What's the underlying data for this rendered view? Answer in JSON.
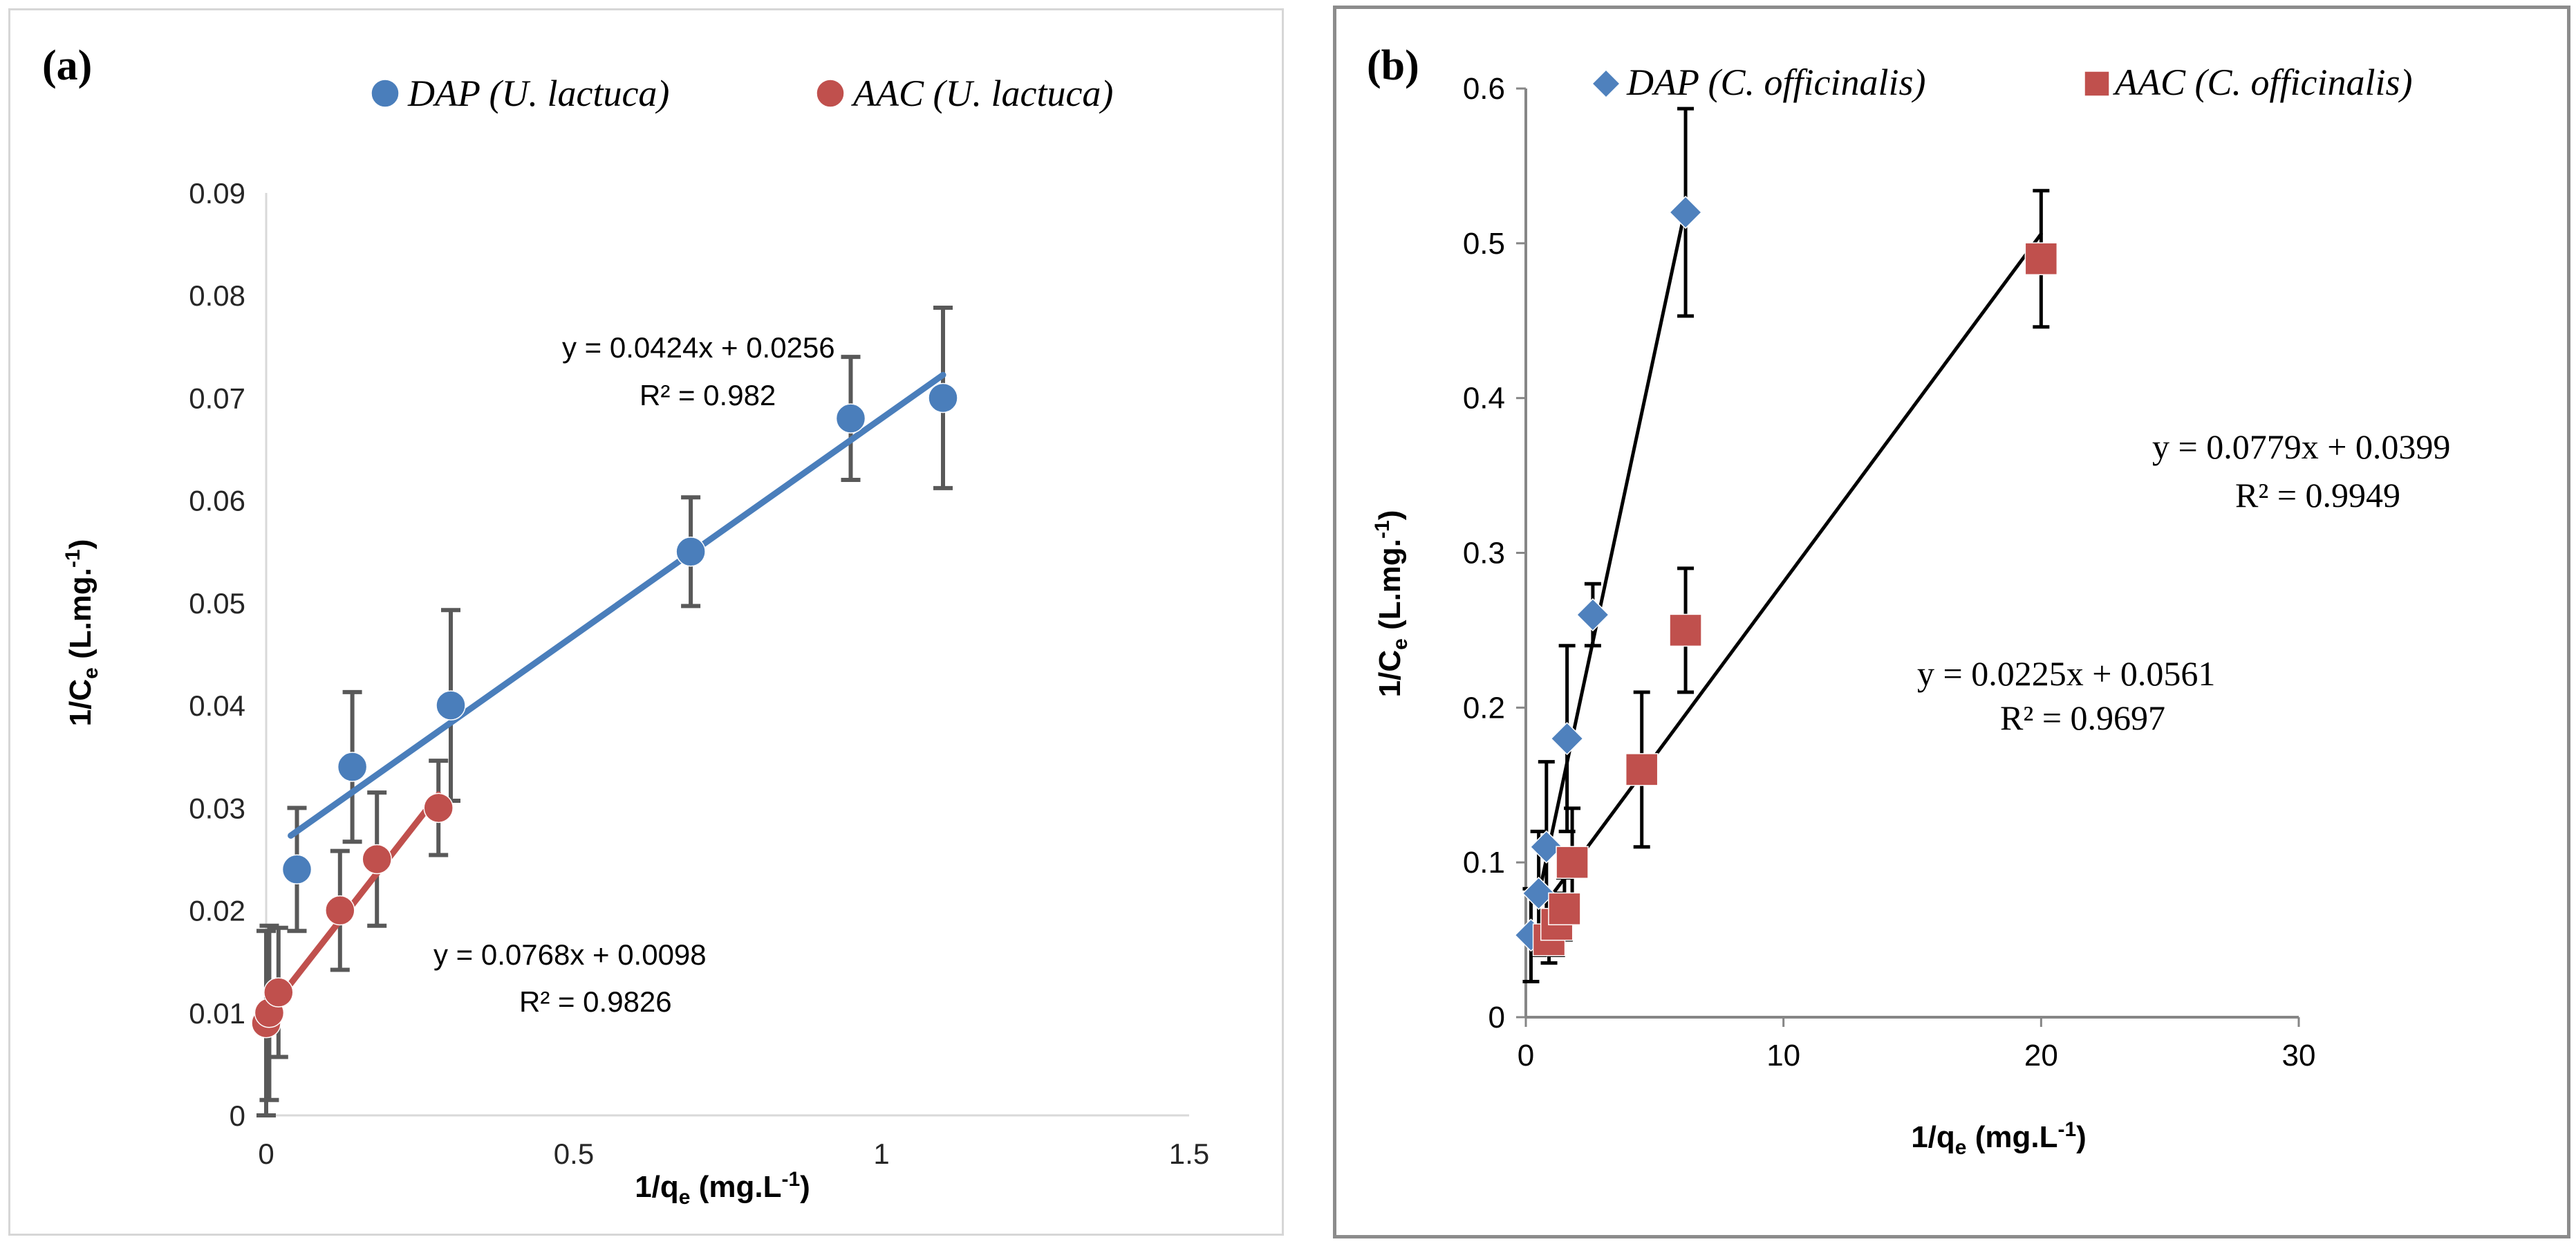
{
  "colors": {
    "dap_a": "#4a7ebb",
    "aac_a": "#c0504d",
    "dap_b": "#4f81bd",
    "aac_b": "#c0504d",
    "errorbar_a": "#595959",
    "errorbar_b": "#000000",
    "fit_b": "#000000",
    "axis_a": "#d9d9d9",
    "axis_b": "#868686"
  },
  "chart_data": [
    {
      "type": "scatter",
      "panel_label": "(a)",
      "xlabel": "1/q",
      "xlabel_sub": "e",
      "xlabel_unit": " (mg.L",
      "xlabel_sup": "-1",
      "xlabel_close": ")",
      "ylabel": "1/C",
      "ylabel_sub": "e",
      "ylabel_unit": " (L.mg.",
      "ylabel_sup": "-1",
      "ylabel_close": ")",
      "xlim": [
        0,
        1.5
      ],
      "ylim": [
        0,
        0.09
      ],
      "xticks": [
        0,
        0.5,
        1,
        1.5
      ],
      "xtick_labels": [
        "0",
        "0.5",
        "1",
        "1.5"
      ],
      "yticks": [
        0,
        0.01,
        0.02,
        0.03,
        0.04,
        0.05,
        0.06,
        0.07,
        0.08,
        0.09
      ],
      "ytick_labels": [
        "0",
        "0.01",
        "0.02",
        "0.03",
        "0.04",
        "0.05",
        "0.06",
        "0.07",
        "0.08",
        "0.09"
      ],
      "grid": false,
      "legend_position": "top",
      "series": [
        {
          "name": "DAP (U. lactuca)",
          "marker": "circle",
          "color_key": "dap_a",
          "x": [
            0.05,
            0.14,
            0.3,
            0.69,
            0.95,
            1.1
          ],
          "y": [
            0.024,
            0.034,
            0.04,
            0.055,
            0.068,
            0.07
          ],
          "error": [
            0.006,
            0.0073,
            0.0093,
            0.0053,
            0.006,
            0.0088
          ],
          "fit": {
            "slope": 0.0424,
            "intercept": 0.0256,
            "x_range": [
              0.04,
              1.1
            ]
          },
          "equation": "y = 0.0424x + 0.0256",
          "r2": "R² = 0.982"
        },
        {
          "name": "AAC (U. lactuca)",
          "marker": "circle",
          "color_key": "aac_a",
          "x": [
            0.0,
            0.005,
            0.02,
            0.12,
            0.18,
            0.28
          ],
          "y": [
            0.009,
            0.01,
            0.012,
            0.02,
            0.025,
            0.03
          ],
          "error": [
            0.009,
            0.0085,
            0.0063,
            0.0058,
            0.0065,
            0.0046
          ],
          "fit": {
            "slope": 0.0768,
            "intercept": 0.0098,
            "x_range": [
              0.0,
              0.28
            ]
          },
          "equation": "y = 0.0768x + 0.0098",
          "r2": "R² = 0.9826"
        }
      ]
    },
    {
      "type": "scatter",
      "panel_label": "(b)",
      "xlabel": "1/q",
      "xlabel_sub": "e",
      "xlabel_unit": " (mg.L",
      "xlabel_sup": "-1",
      "xlabel_close": ")",
      "ylabel": "1/C",
      "ylabel_sub": "e",
      "ylabel_unit": " (L.mg.",
      "ylabel_sup": "-1",
      "ylabel_close": ")",
      "xlim": [
        0,
        30
      ],
      "ylim": [
        0,
        0.6
      ],
      "xticks": [
        0,
        10,
        20,
        30
      ],
      "xtick_labels": [
        "0",
        "10",
        "20",
        "30"
      ],
      "yticks": [
        0,
        0.1,
        0.2,
        0.3,
        0.4,
        0.5,
        0.6
      ],
      "ytick_labels": [
        "0",
        "0.1",
        "0.2",
        "0.3",
        "0.4",
        "0.5",
        "0.6"
      ],
      "grid": false,
      "legend_position": "top",
      "series": [
        {
          "name": "DAP (C. officinalis)",
          "marker": "diamond",
          "color_key": "dap_b",
          "x": [
            0.2,
            0.5,
            0.8,
            1.6,
            2.6,
            6.2
          ],
          "y": [
            0.053,
            0.08,
            0.11,
            0.18,
            0.26,
            0.52
          ],
          "error": [
            0.03,
            0.04,
            0.055,
            0.06,
            0.02,
            0.067
          ],
          "fit": {
            "slope": 0.0779,
            "intercept": 0.0399,
            "x_range": [
              0.45,
              6.2
            ]
          },
          "equation": "y = 0.0779x + 0.0399",
          "r2": "R² = 0.9949"
        },
        {
          "name": "AAC (C. officinalis)",
          "marker": "square",
          "color_key": "aac_b",
          "x": [
            0.9,
            1.2,
            1.5,
            1.8,
            4.5,
            6.2,
            20.0
          ],
          "y": [
            0.05,
            0.06,
            0.07,
            0.1,
            0.16,
            0.25,
            0.49
          ],
          "error": [
            0.015,
            0.02,
            0.02,
            0.035,
            0.05,
            0.04,
            0.044
          ],
          "fit": {
            "slope": 0.0225,
            "intercept": 0.0561,
            "x_range": [
              0.9,
              20.0
            ]
          },
          "equation": "y = 0.0225x + 0.0561",
          "r2": "R² = 0.9697"
        }
      ]
    }
  ]
}
